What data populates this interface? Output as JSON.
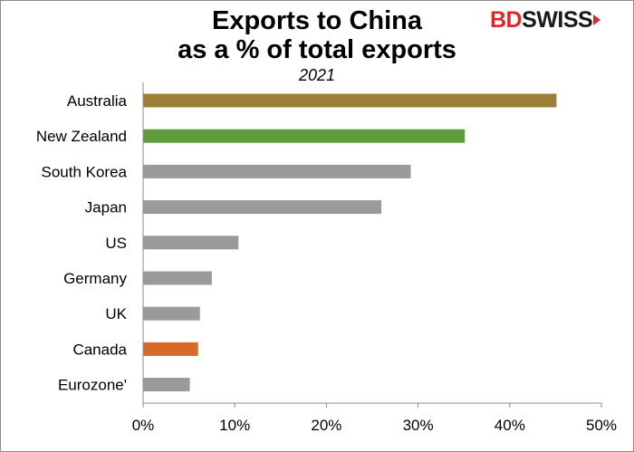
{
  "header": {
    "title_line1": "Exports to China",
    "title_line2": "as a % of total exports",
    "subtitle": "2021"
  },
  "logo": {
    "part1": "BD",
    "part2": "SWISS"
  },
  "chart_data": {
    "type": "bar",
    "orientation": "horizontal",
    "title": "Exports to China as a % of total exports",
    "subtitle": "2021",
    "categories": [
      "Australia",
      "New Zealand",
      "South Korea",
      "Japan",
      "US",
      "Germany",
      "UK",
      "Canada",
      "Eurozone'"
    ],
    "values": [
      45.1,
      35.1,
      29.2,
      26.0,
      10.4,
      7.5,
      6.2,
      6.0,
      5.1
    ],
    "colors": [
      "#9c7e35",
      "#5f9a3c",
      "#9a9a9a",
      "#9a9a9a",
      "#9a9a9a",
      "#9a9a9a",
      "#9a9a9a",
      "#d66a26",
      "#9a9a9a"
    ],
    "xlim": [
      0,
      50
    ],
    "xticks": [
      0,
      10,
      20,
      30,
      40,
      50
    ],
    "xtick_labels": [
      "0%",
      "10%",
      "20%",
      "30%",
      "40%",
      "50%"
    ],
    "grid": false,
    "legend": "none"
  }
}
